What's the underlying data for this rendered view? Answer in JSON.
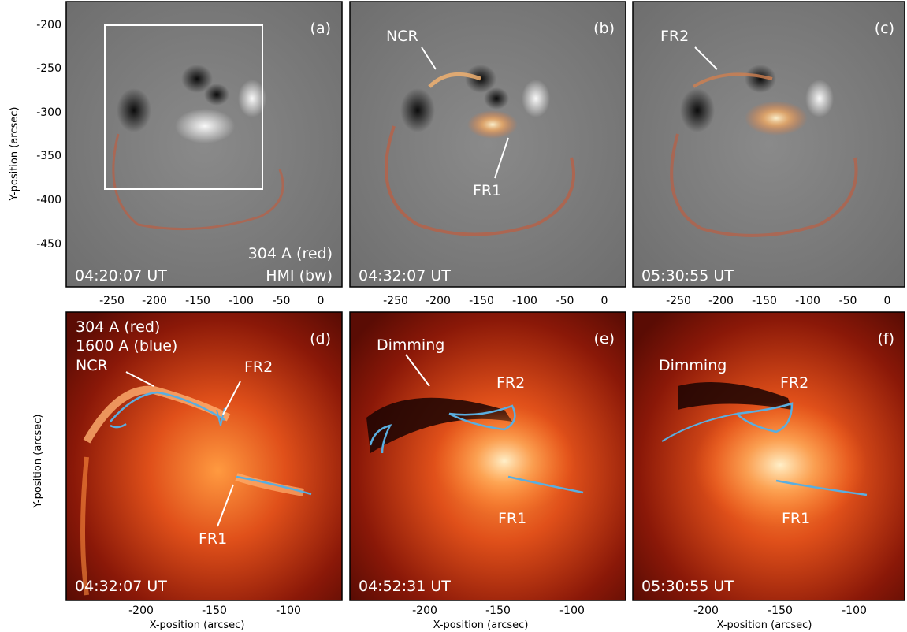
{
  "figure": {
    "ylabel": "Y-position (arcsec)",
    "xlabel": "X-position (arcsec)",
    "top_row": {
      "xticks": [
        "-250",
        "-200",
        "-150",
        "-100",
        "-50",
        "0"
      ],
      "yticks": [
        "-200",
        "-250",
        "-300",
        "-350",
        "-400",
        "-450"
      ]
    },
    "bottom_row": {
      "xticks": [
        "-200",
        "-150",
        "-100"
      ]
    },
    "panels": [
      {
        "tag": "(a)",
        "time": "04:20:07 UT",
        "legend1": "304 A (red)",
        "legend2": "HMI (bw)"
      },
      {
        "tag": "(b)",
        "time": "04:32:07 UT",
        "label_ncr": "NCR",
        "label_fr1": "FR1"
      },
      {
        "tag": "(c)",
        "time": "05:30:55 UT",
        "label_fr2": "FR2"
      },
      {
        "tag": "(d)",
        "time": "04:32:07 UT",
        "legend1": "304 A (red)",
        "legend2": "1600 A (blue)",
        "label_ncr": "NCR",
        "label_fr2": "FR2",
        "label_fr1": "FR1"
      },
      {
        "tag": "(e)",
        "time": "04:52:31 UT",
        "label_dim": "Dimming",
        "label_fr2": "FR2",
        "label_fr1": "FR1"
      },
      {
        "tag": "(f)",
        "time": "05:30:55 UT",
        "label_dim": "Dimming",
        "label_fr2": "FR2",
        "label_fr1": "FR1"
      }
    ],
    "colors": {
      "red_emission": "#e04a10",
      "blue_contour": "#5aaee0",
      "gray_mag": "#7a7a7a"
    }
  }
}
